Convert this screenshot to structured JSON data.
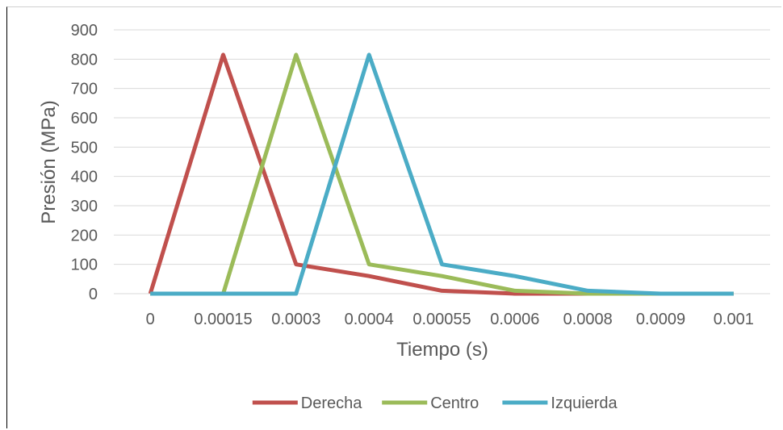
{
  "chart_data": {
    "type": "line",
    "categories": [
      "0",
      "0.00015",
      "0.0003",
      "0.0004",
      "0.00055",
      "0.0006",
      "0.0008",
      "0.0009",
      "0.001"
    ],
    "series": [
      {
        "name": "Derecha",
        "color": "#C0504D",
        "values": [
          0,
          815,
          100,
          60,
          10,
          0,
          0,
          0,
          0
        ]
      },
      {
        "name": "Centro",
        "color": "#9BBB59",
        "values": [
          0,
          0,
          815,
          100,
          60,
          10,
          0,
          0,
          0
        ]
      },
      {
        "name": "Izquierda",
        "color": "#4BACC6",
        "values": [
          0,
          0,
          0,
          815,
          100,
          60,
          10,
          0,
          0
        ]
      }
    ],
    "xlabel": "Tiempo (s)",
    "ylabel": "Presión (MPa)",
    "ylim": [
      0,
      900
    ],
    "yticks": [
      0,
      100,
      200,
      300,
      400,
      500,
      600,
      700,
      800,
      900
    ],
    "grid": true,
    "legend": "bottom"
  }
}
